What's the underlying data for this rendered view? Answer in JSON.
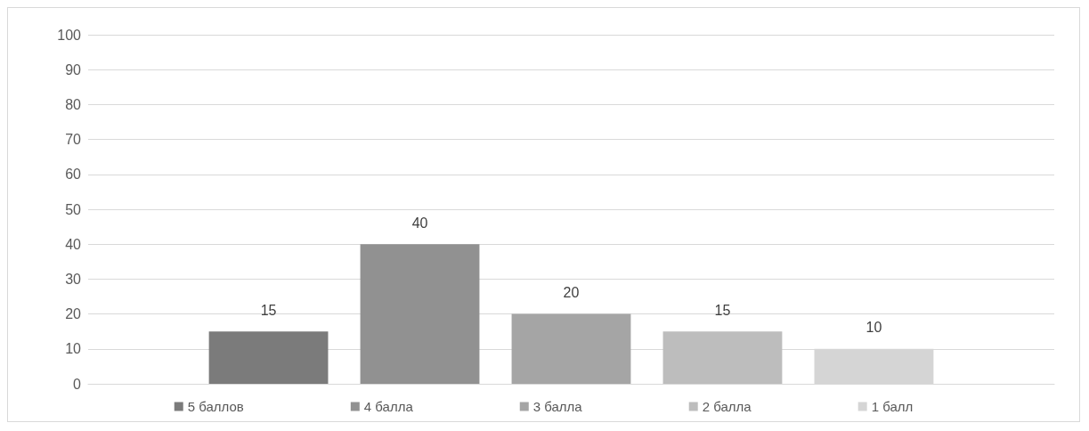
{
  "chart_data": {
    "type": "bar",
    "categories": [
      null
    ],
    "series": [
      {
        "name": "5 баллов",
        "color": "#7b7b7b",
        "values": [
          15
        ]
      },
      {
        "name": "4 балла",
        "color": "#919191",
        "values": [
          40
        ]
      },
      {
        "name": "3 балла",
        "color": "#a5a5a5",
        "values": [
          20
        ]
      },
      {
        "name": "2 балла",
        "color": "#bdbdbd",
        "values": [
          15
        ]
      },
      {
        "name": "1 балл",
        "color": "#d5d5d5",
        "values": [
          10
        ]
      }
    ],
    "ylim": [
      0,
      100
    ],
    "yticks": [
      0,
      10,
      20,
      30,
      40,
      50,
      60,
      70,
      80,
      90,
      100
    ],
    "grid": "y",
    "legend": "bottom",
    "data_labels": true
  }
}
